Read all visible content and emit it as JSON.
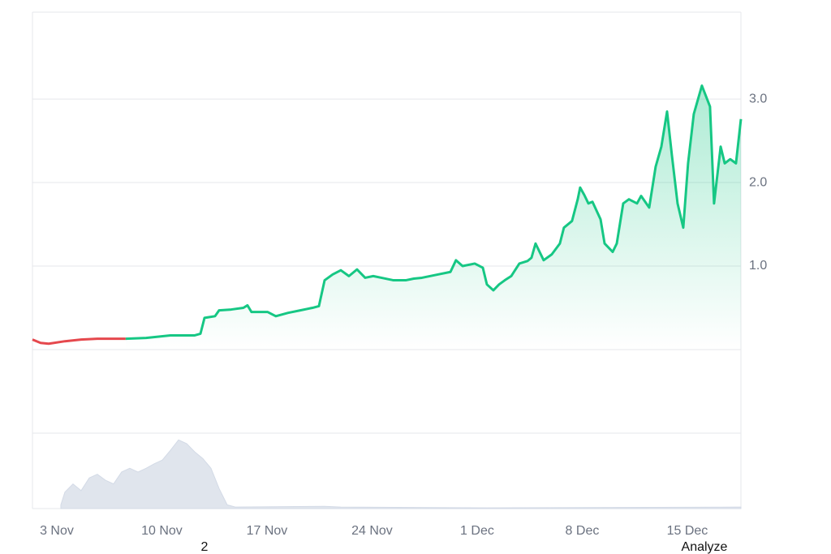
{
  "chart_data": [
    {
      "type": "line",
      "xlim": [
        -1.62,
        45.57
      ],
      "xticks": [
        {
          "value": 0,
          "label": "3 Nov"
        },
        {
          "value": 7,
          "label": "10 Nov"
        },
        {
          "value": 14,
          "label": "17 Nov"
        },
        {
          "value": 21,
          "label": "24 Nov"
        },
        {
          "value": 28,
          "label": "1 Dec"
        },
        {
          "value": 35,
          "label": "8 Dec"
        },
        {
          "value": 42,
          "label": "15 Dec"
        }
      ],
      "ylim": [
        -1.01,
        4.04
      ],
      "yticks": [
        {
          "value": 1,
          "label": "1.0"
        },
        {
          "value": 2,
          "label": "2.0"
        },
        {
          "value": 3,
          "label": "3.0"
        }
      ],
      "grid": true,
      "series": [
        {
          "color": "#e5484d",
          "x": [
            -1.62,
            -1.08,
            -0.54,
            0.54,
            1.62,
            2.7,
            4.59
          ],
          "values": [
            0.12,
            0.08,
            0.07,
            0.1,
            0.12,
            0.13,
            0.13
          ]
        },
        {
          "color": "#16c784",
          "x": [
            4.59,
            5.95,
            7.57,
            9.19,
            9.57,
            9.84,
            10.54,
            10.81,
            11.62,
            12.43,
            12.7,
            12.97,
            14.05,
            14.59,
            15.41,
            16.22,
            17.03,
            17.46,
            17.84,
            18.38,
            18.92,
            19.46,
            20.0,
            20.54,
            21.08,
            21.62,
            22.43,
            23.24,
            23.78,
            24.32,
            25.41,
            26.22,
            26.59,
            27.03,
            27.84,
            28.38,
            28.65,
            29.08,
            29.46,
            29.84,
            30.27,
            30.81,
            31.35,
            31.62,
            31.89,
            32.43,
            32.97,
            33.51,
            33.78,
            34.32,
            34.7,
            34.86,
            35.14,
            35.41,
            35.68,
            36.22,
            36.49,
            37.03,
            37.3,
            37.73,
            38.11,
            38.65,
            38.92,
            39.46,
            39.89,
            40.27,
            40.65,
            40.97,
            41.35,
            41.73,
            42.05,
            42.43,
            42.97,
            43.51,
            43.78,
            44.22,
            44.49,
            44.86,
            45.24,
            45.57
          ],
          "values": [
            0.13,
            0.14,
            0.17,
            0.17,
            0.19,
            0.38,
            0.4,
            0.47,
            0.48,
            0.5,
            0.53,
            0.45,
            0.45,
            0.4,
            0.44,
            0.47,
            0.5,
            0.52,
            0.83,
            0.9,
            0.95,
            0.88,
            0.96,
            0.86,
            0.88,
            0.86,
            0.83,
            0.83,
            0.85,
            0.86,
            0.9,
            0.93,
            1.07,
            1.0,
            1.03,
            0.98,
            0.78,
            0.71,
            0.78,
            0.83,
            0.88,
            1.03,
            1.06,
            1.1,
            1.27,
            1.07,
            1.14,
            1.27,
            1.46,
            1.54,
            1.8,
            1.94,
            1.85,
            1.75,
            1.77,
            1.56,
            1.27,
            1.17,
            1.27,
            1.75,
            1.8,
            1.75,
            1.84,
            1.7,
            2.19,
            2.43,
            2.85,
            2.33,
            1.75,
            1.46,
            2.23,
            2.82,
            3.16,
            2.91,
            1.75,
            2.43,
            2.23,
            2.28,
            2.23,
            2.76
          ]
        }
      ]
    },
    {
      "type": "area",
      "xlim": [
        -1.62,
        45.57
      ],
      "ylim": [
        0,
        100
      ],
      "color": "#d3dae6",
      "x": [
        0.27,
        0.54,
        1.08,
        1.62,
        2.16,
        2.7,
        3.24,
        3.78,
        4.32,
        4.86,
        5.41,
        5.95,
        6.49,
        7.03,
        7.57,
        8.11,
        8.65,
        9.19,
        9.73,
        10.27,
        10.81,
        11.35,
        11.89,
        17.84,
        18.92,
        28.65,
        45.57
      ],
      "values": [
        5,
        22,
        33,
        24,
        41,
        46,
        38,
        33,
        49,
        54,
        49,
        54,
        60,
        65,
        78,
        92,
        87,
        76,
        67,
        54,
        27,
        5,
        2,
        3,
        2,
        1,
        2
      ]
    }
  ],
  "footer": {
    "left": "2",
    "right": "Analyze"
  }
}
